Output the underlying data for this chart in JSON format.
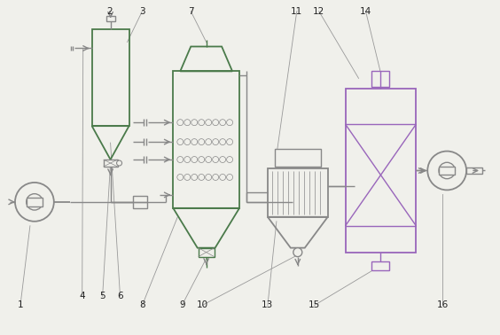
{
  "bg_color": "#f0f0eb",
  "line_color": "#888888",
  "green_color": "#4a7a4a",
  "purple_color": "#9966bb",
  "label_color": "#222222",
  "label_fontsize": 7.5,
  "fig_w": 5.64,
  "fig_h": 3.78,
  "dpi": 100
}
